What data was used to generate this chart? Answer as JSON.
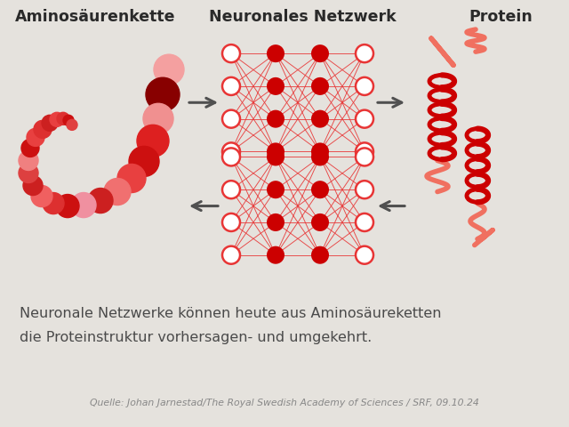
{
  "bg_top": "#e5e2dd",
  "bg_bottom": "#c9c6c1",
  "title_color": "#2a2a2a",
  "text_color": "#4a4a4a",
  "source_color": "#888888",
  "red_dark": "#cc0000",
  "red_mid": "#e83535",
  "red_light": "#f08080",
  "red_pink": "#f4a0a0",
  "red_salmon": "#f07060",
  "red_network_line": "#e83535",
  "arrow_color": "#505050",
  "label1": "Aminosäurenkette",
  "label2": "Neuronales Netzwerk",
  "label3": "Protein",
  "caption_line1": "Neuronale Netzwerke können heute aus Aminosäureketten",
  "caption_line2": "die Proteinstruktur vorhersagen- und umgekehrt.",
  "source_text": "Quelle: Johan Jarnestad/The Royal Swedish Academy of Sciences / SRF, 09.10.24"
}
